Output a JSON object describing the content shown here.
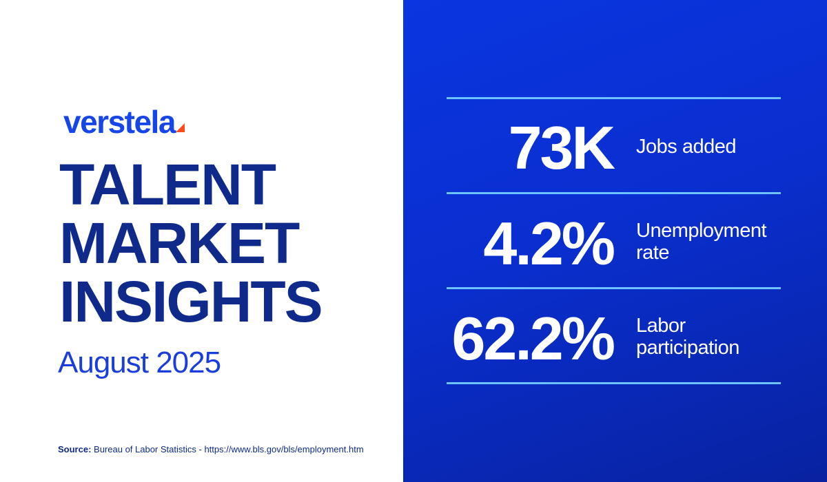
{
  "brand": {
    "logo_text": "verstela"
  },
  "title": {
    "line1": "TALENT",
    "line2": "MARKET",
    "line3": "INSIGHTS"
  },
  "subtitle": "August 2025",
  "source": {
    "label": "Source:",
    "text": "Bureau of Labor Statistics - https://www.bls.gov/bls/employment.htm"
  },
  "stats": [
    {
      "value": "73K",
      "label_line1": "Jobs added",
      "label_line2": ""
    },
    {
      "value": "4.2%",
      "label_line1": "Unemployment",
      "label_line2": "rate"
    },
    {
      "value": "62.2%",
      "label_line1": "Labor",
      "label_line2": "participation"
    }
  ],
  "colors": {
    "brand_blue": "#1746e8",
    "title_navy": "#0f2a8a",
    "panel_blue": "#0a35e0",
    "divider_cyan": "#6ec3ff",
    "logo_accent": "#ff4a1c"
  }
}
